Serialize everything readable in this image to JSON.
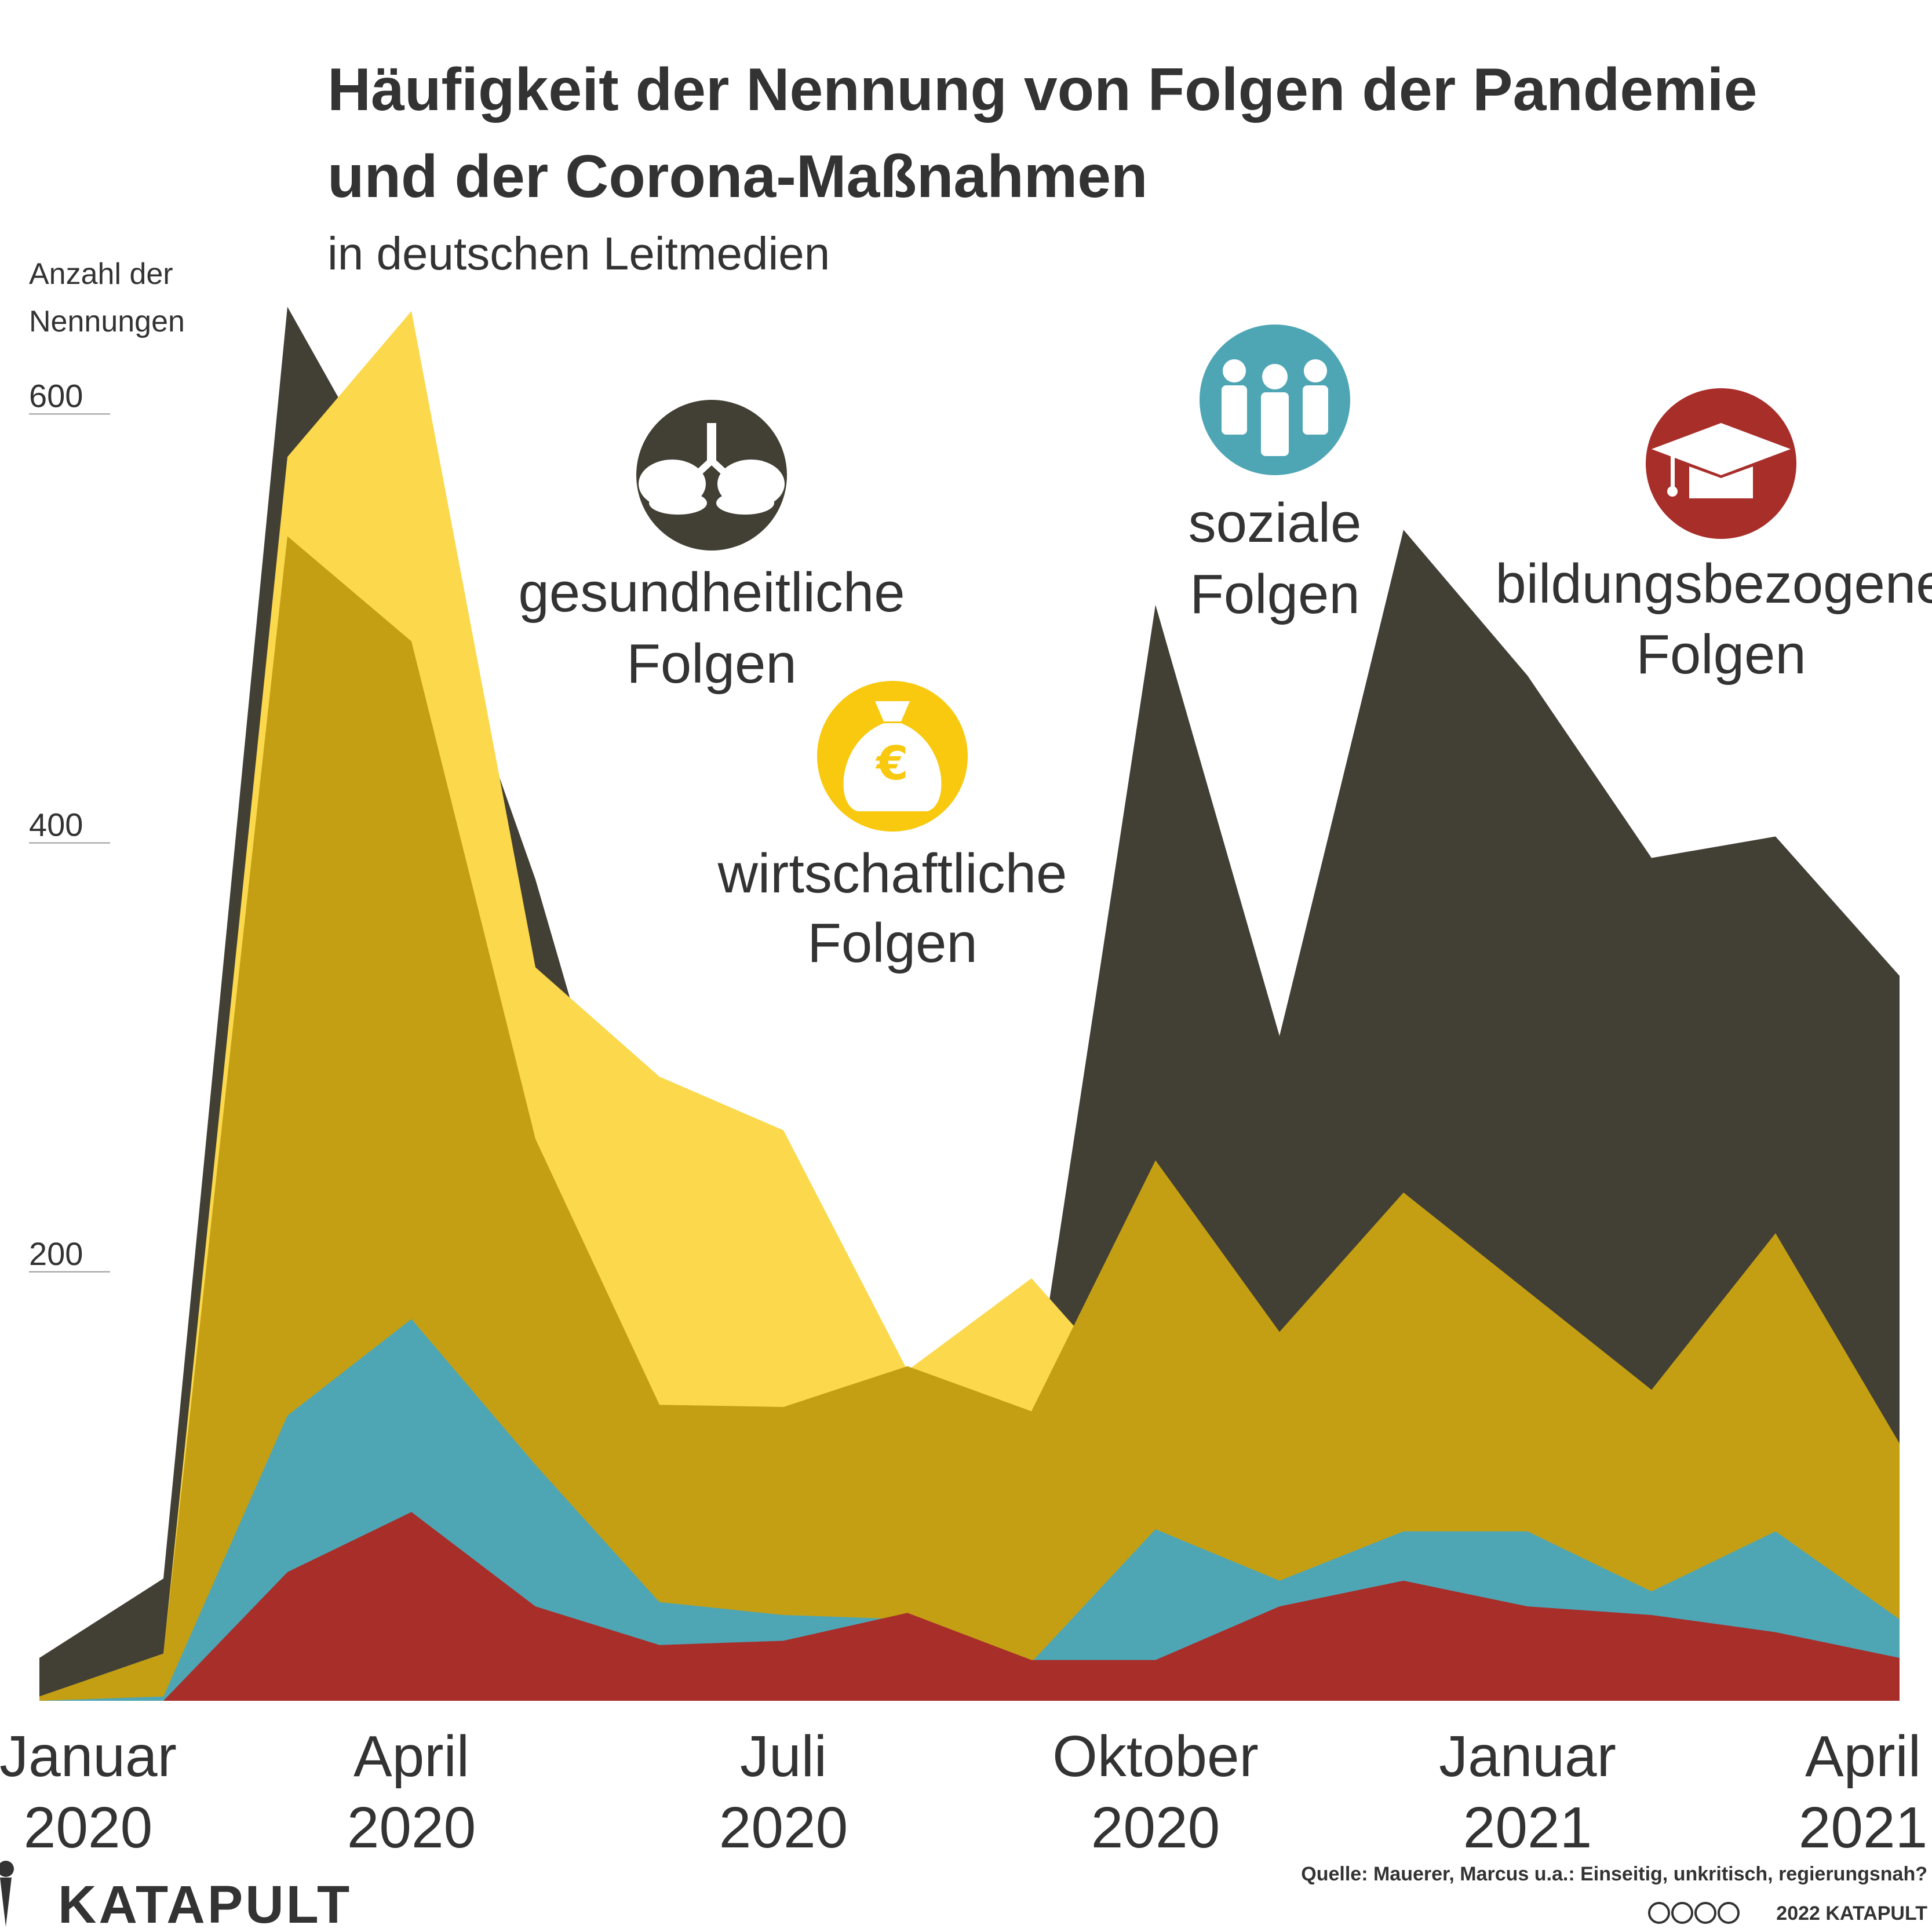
{
  "title_line1": "Häufigkeit der Nennung von Folgen der Pandemie",
  "title_line2": "und der Corona-Maßnahmen",
  "subtitle": "in deutschen Leitmedien",
  "ylabel_line1": "Anzahl der",
  "ylabel_line2": "Nennungen",
  "source": "Quelle: Mauerer, Marcus u.a.: Einseitig, unkritisch, regierungsnah?",
  "copyright": "2022 KATAPULT",
  "logo": "KATAPULT",
  "colors": {
    "gesundheitlich": "#423f35",
    "wirtschaftlich": "#f8c90f",
    "sozial": "#4ea6b5",
    "bildung": "#a82e2a",
    "text": "#333333"
  },
  "icons": {
    "gesundheitlich": "lungs-icon",
    "wirtschaftlich": "money-bag-icon",
    "sozial": "people-icon",
    "bildung": "graduation-cap-icon"
  },
  "chart_data": {
    "type": "area",
    "title": "Häufigkeit der Nennung von Folgen der Pandemie und der Corona-Maßnahmen",
    "subtitle": "in deutschen Leitmedien",
    "xlabel": "",
    "ylabel": "Anzahl der Nennungen",
    "ylim": [
      0,
      650
    ],
    "grid": false,
    "x": [
      "2020-01",
      "2020-02",
      "2020-03",
      "2020-04",
      "2020-05",
      "2020-06",
      "2020-07",
      "2020-08",
      "2020-09",
      "2020-10",
      "2020-11",
      "2020-12",
      "2021-01",
      "2021-02",
      "2021-03",
      "2021-04"
    ],
    "ticks": [
      {
        "x": "2020-01",
        "label_line1": "Januar",
        "label_line2": "2020"
      },
      {
        "x": "2020-04",
        "label_line1": "April",
        "label_line2": "2020"
      },
      {
        "x": "2020-07",
        "label_line1": "Juli",
        "label_line2": "2020"
      },
      {
        "x": "2020-10",
        "label_line1": "Oktober",
        "label_line2": "2020"
      },
      {
        "x": "2021-01",
        "label_line1": "Januar",
        "label_line2": "2021"
      },
      {
        "x": "2021-04",
        "label_line1": "April",
        "label_line2": "2021"
      }
    ],
    "yticks": [
      200,
      400,
      600
    ],
    "series": [
      {
        "name": "gesundheitliche Folgen",
        "label_line1": "gesundheitliche",
        "label_line2": "Folgen",
        "color": "#423f35",
        "opacity": 1,
        "values": [
          20,
          57,
          650,
          547,
          383,
          184,
          162,
          153,
          132,
          511,
          310,
          546,
          478,
          393,
          403,
          338
        ]
      },
      {
        "name": "wirtschaftliche Folgen",
        "label_line1": "wirtschaftliche",
        "label_line2": "Folgen",
        "color": "#f8c90f",
        "opacity": 0.75,
        "values": [
          2,
          22,
          580,
          648,
          342,
          291,
          266,
          154,
          197,
          132,
          157,
          195,
          162,
          130,
          140,
          120
        ]
      },
      {
        "name": "soziale Folgen",
        "label_line1": "soziale",
        "label_line2": "Folgen",
        "color": "#4ea6b5",
        "opacity": 1,
        "values": [
          0,
          2,
          133,
          178,
          110,
          46,
          40,
          38,
          18,
          80,
          56,
          79,
          79,
          51,
          79,
          38
        ]
      },
      {
        "name": "bildungsbezogene Folgen",
        "label_line1": "bildungsbezogene",
        "label_line2": "Folgen",
        "color": "#a82e2a",
        "opacity": 1,
        "values": [
          0,
          0,
          60,
          88,
          44,
          26,
          28,
          41,
          19,
          19,
          44,
          56,
          44,
          40,
          32,
          20
        ]
      }
    ],
    "underlay": {
      "name": "wirtschaftliche Folgen (Hintergrund)",
      "color": "#fbd84c",
      "values": [
        2,
        22,
        580,
        648,
        342,
        291,
        266,
        154,
        197,
        132,
        157,
        195,
        162,
        130,
        140,
        120
      ]
    },
    "overlay_mid": {
      "color": "#c49f13",
      "values": [
        2,
        22,
        543,
        494,
        262,
        138,
        137,
        156,
        135,
        252,
        172,
        237,
        191,
        145,
        218,
        120
      ]
    }
  }
}
